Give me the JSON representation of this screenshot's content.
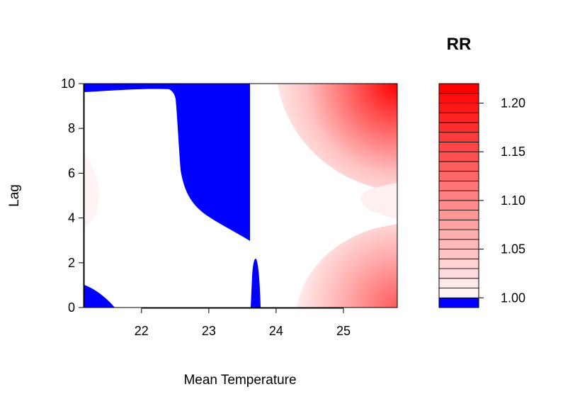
{
  "chart_data": {
    "type": "heatmap",
    "subtype": "filled-contour",
    "xlabel": "Mean Temperature",
    "ylabel": "Lag",
    "legend_title": "RR",
    "xlim": [
      21.15,
      25.8
    ],
    "ylim": [
      0,
      10
    ],
    "x_ticks": [
      22,
      23,
      24,
      25
    ],
    "x_tick_labels": [
      "22",
      "23",
      "24",
      "25"
    ],
    "y_ticks": [
      0,
      2,
      4,
      6,
      8,
      10
    ],
    "y_tick_labels": [
      "0",
      "2",
      "4",
      "6",
      "8",
      "10"
    ],
    "legend_ticks": [
      1.0,
      1.05,
      1.1,
      1.15,
      1.2
    ],
    "legend_tick_labels": [
      "1.00",
      "1.05",
      "1.10",
      "1.15",
      "1.20"
    ],
    "legend_range": [
      0.99,
      1.22
    ],
    "legend_levels": [
      0.99,
      1.0,
      1.01,
      1.02,
      1.03,
      1.04,
      1.05,
      1.06,
      1.07,
      1.08,
      1.09,
      1.1,
      1.11,
      1.12,
      1.13,
      1.14,
      1.15,
      1.16,
      1.17,
      1.18,
      1.19,
      1.2,
      1.21,
      1.22
    ],
    "colors": {
      "below_one": "#0000ff",
      "low": "#ffffff",
      "high": "#ff0000"
    },
    "regions": [
      {
        "name": "blue-top-strip",
        "rr": "below 1.00",
        "x_range": [
          21.15,
          22.4
        ],
        "lag_range": [
          9.6,
          10
        ]
      },
      {
        "name": "blue-central-block",
        "rr": "below 1.00",
        "x_range": [
          22.4,
          23.6
        ],
        "lag_range": [
          2.9,
          10
        ]
      },
      {
        "name": "blue-spike",
        "rr": "below 1.00",
        "x_range": [
          23.6,
          23.75
        ],
        "lag_range": [
          0,
          2.2
        ]
      },
      {
        "name": "blue-bottom-left",
        "rr": "below 1.00",
        "x_range": [
          21.15,
          21.6
        ],
        "lag_range": [
          0,
          1
        ]
      },
      {
        "name": "red-top-right",
        "rr_max": 1.22,
        "x_range": [
          24.0,
          25.8
        ],
        "lag_range": [
          5,
          10
        ]
      },
      {
        "name": "red-bottom-right",
        "rr_max": 1.12,
        "x_range": [
          24.3,
          25.8
        ],
        "lag_range": [
          0,
          4.5
        ]
      }
    ]
  }
}
